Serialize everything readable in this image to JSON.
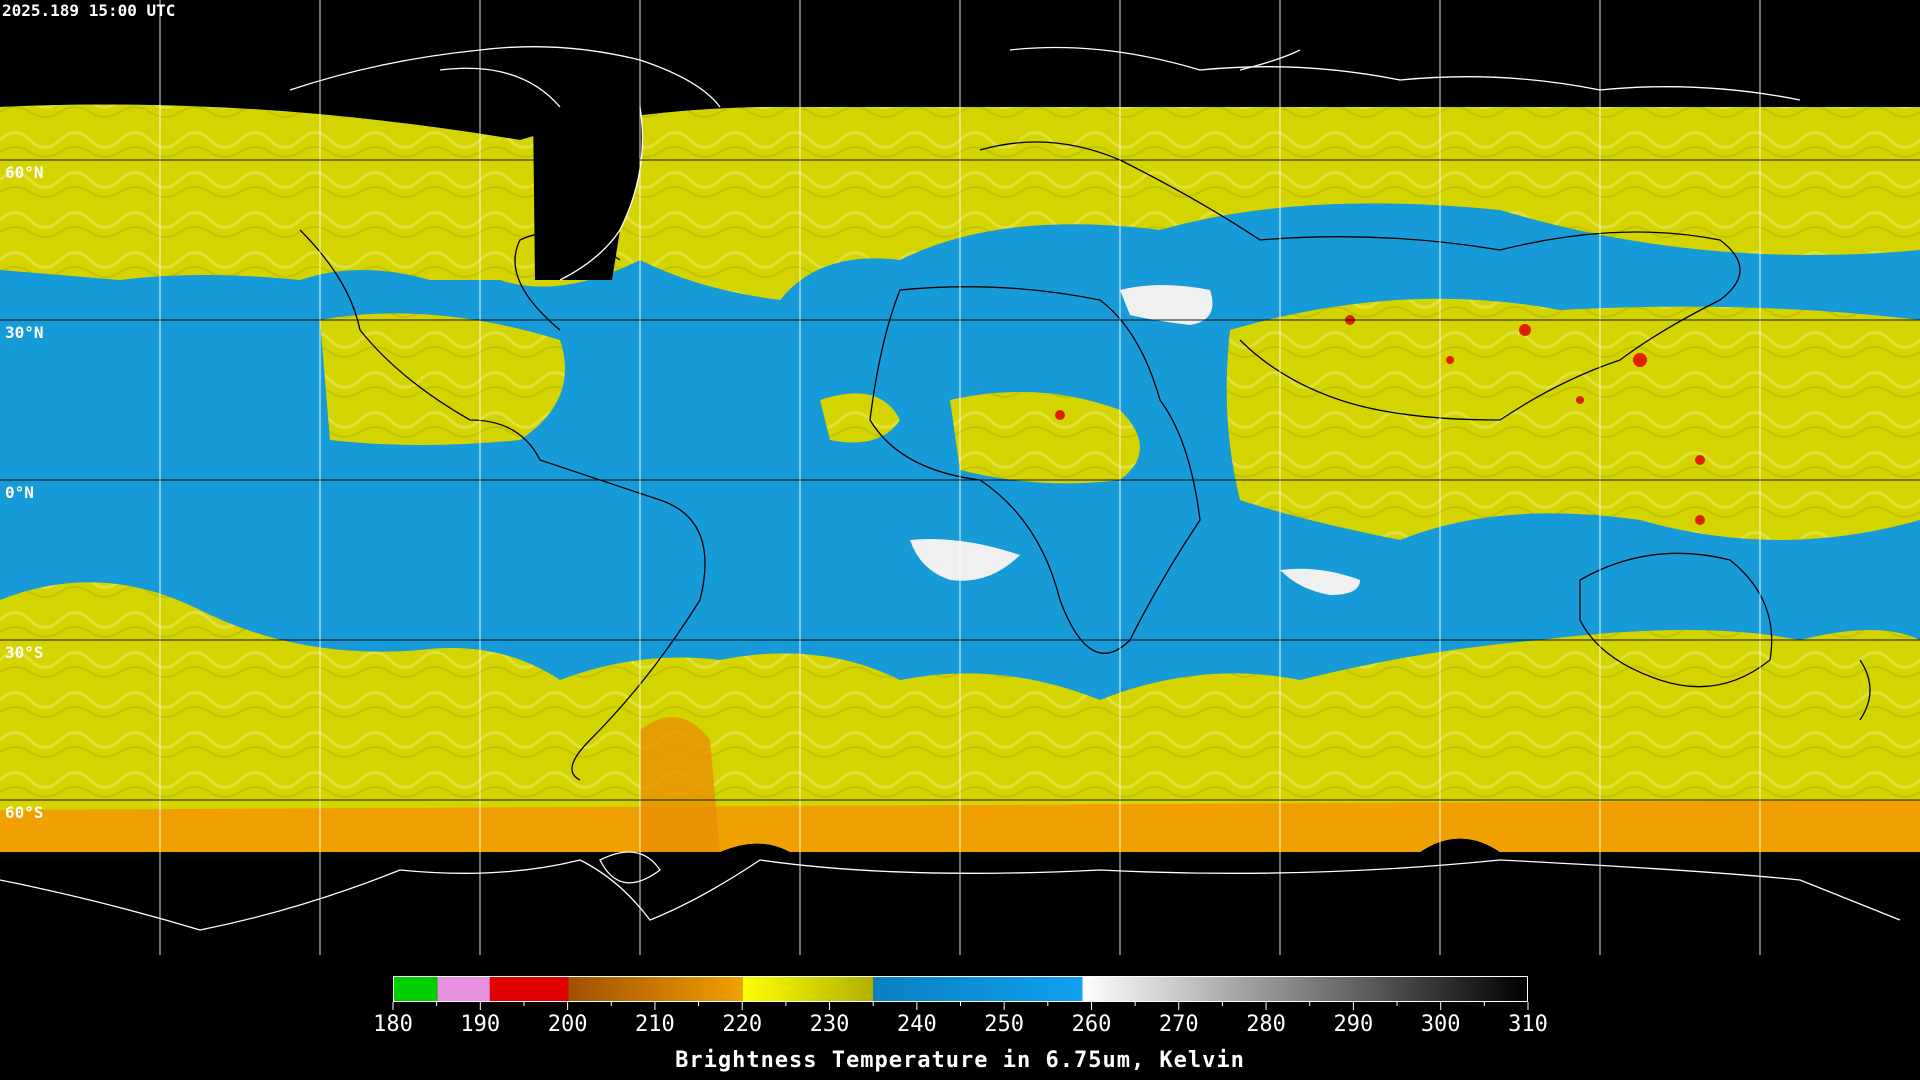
{
  "header": {
    "timestamp": "2025.189 15:00 UTC"
  },
  "lat_labels": [
    "60°N",
    "30°N",
    "0°N",
    "30°S",
    "60°S"
  ],
  "colors": {
    "background": "#000000",
    "dry_blue": "#1a9ad8",
    "moist_yellow": "#d6d600",
    "cold_orange": "#f0a000",
    "very_cold_red": "#e00000",
    "warm_white": "#f0f0f0",
    "grid": "#ffffff"
  },
  "colorbar": {
    "title": "Brightness Temperature in 6.75um, Kelvin",
    "min": 180,
    "max": 310,
    "ticks": [
      "180",
      "190",
      "200",
      "210",
      "220",
      "230",
      "240",
      "250",
      "260",
      "270",
      "280",
      "290",
      "300",
      "310"
    ],
    "stops": [
      {
        "from": 180,
        "to": 185,
        "color": "#00d000"
      },
      {
        "from": 185,
        "to": 191,
        "color": "#e890e0"
      },
      {
        "from": 191,
        "to": 200,
        "color": "#e00000"
      },
      {
        "from": 200,
        "to": 220,
        "gradient": [
          "#a05000",
          "#f0a000"
        ]
      },
      {
        "from": 220,
        "to": 235,
        "gradient": [
          "#ffff00",
          "#b0b000"
        ]
      },
      {
        "from": 235,
        "to": 259,
        "gradient": [
          "#0a80c0",
          "#10a0f0"
        ]
      },
      {
        "from": 259,
        "to": 310,
        "gradient": [
          "#ffffff",
          "#000000"
        ]
      }
    ]
  }
}
